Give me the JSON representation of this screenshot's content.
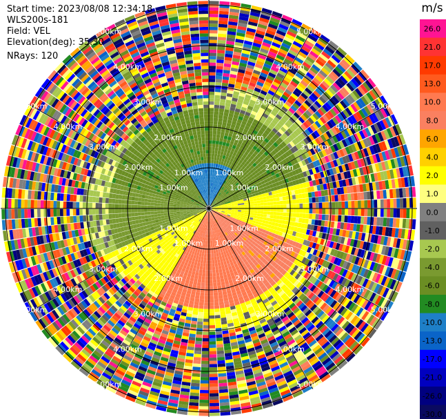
{
  "header": {
    "start_time_label": "Start time:",
    "start_time": "2023/08/08 12:34:18",
    "instrument": "WLS200s-181",
    "field_label": "Field:",
    "field": "VEL",
    "elevation_label": "Elevation(deg):",
    "elevation": "35.30",
    "nrays_label": "NRays:",
    "nrays": "120"
  },
  "chart_data": {
    "type": "heatmap",
    "projection": "polar PPI (range rings, 120 rays)",
    "title": "",
    "range_ring_labels": [
      "1.00km",
      "2.00km",
      "3.00km",
      "4.00km",
      "5.00km"
    ],
    "range_rings_km": [
      1,
      2,
      3,
      4,
      5
    ],
    "crosshair": true,
    "colorbar": {
      "unit": "m/s",
      "placement": "right",
      "ticks": [
        "26.0",
        "21.0",
        "17.0",
        "13.0",
        "10.0",
        "8.0",
        "6.0",
        "4.0",
        "2.0",
        "1.0",
        "0.0",
        "-1.0",
        "-2.0",
        "-4.0",
        "-6.0",
        "-8.0",
        "-10.0",
        "-13.0",
        "-17.0",
        "-21.0",
        "-26.0",
        "-30.0"
      ],
      "colors": [
        "#ff1493",
        "#ff3333",
        "#ff3a00",
        "#ff5a1e",
        "#ff7a50",
        "#fa8060",
        "#ffa500",
        "#ffd000",
        "#ffff00",
        "#ffff80",
        "#808080",
        "#606060",
        "#a8c850",
        "#7a9a30",
        "#6b8e23",
        "#228b22",
        "#1e7fc8",
        "#0a64c8",
        "#0000ff",
        "#0000c0",
        "#000080",
        "#0a0a60"
      ]
    },
    "velocity_field": {
      "near_range_km": 3,
      "regions": [
        {
          "sector": "north-west",
          "value_ms": -6.0
        },
        {
          "sector": "north (near origin)",
          "value_ms": -10.0
        },
        {
          "sector": "east",
          "value_ms": 2.0
        },
        {
          "sector": "south-east",
          "value_ms": 8.0
        },
        {
          "sector": "south",
          "value_ms": 10.0
        },
        {
          "sector": "south-west",
          "value_ms": 2.0
        },
        {
          "sector": "west",
          "value_ms": -4.0
        }
      ],
      "far_range": "noise (random values from full colour scale)"
    }
  }
}
